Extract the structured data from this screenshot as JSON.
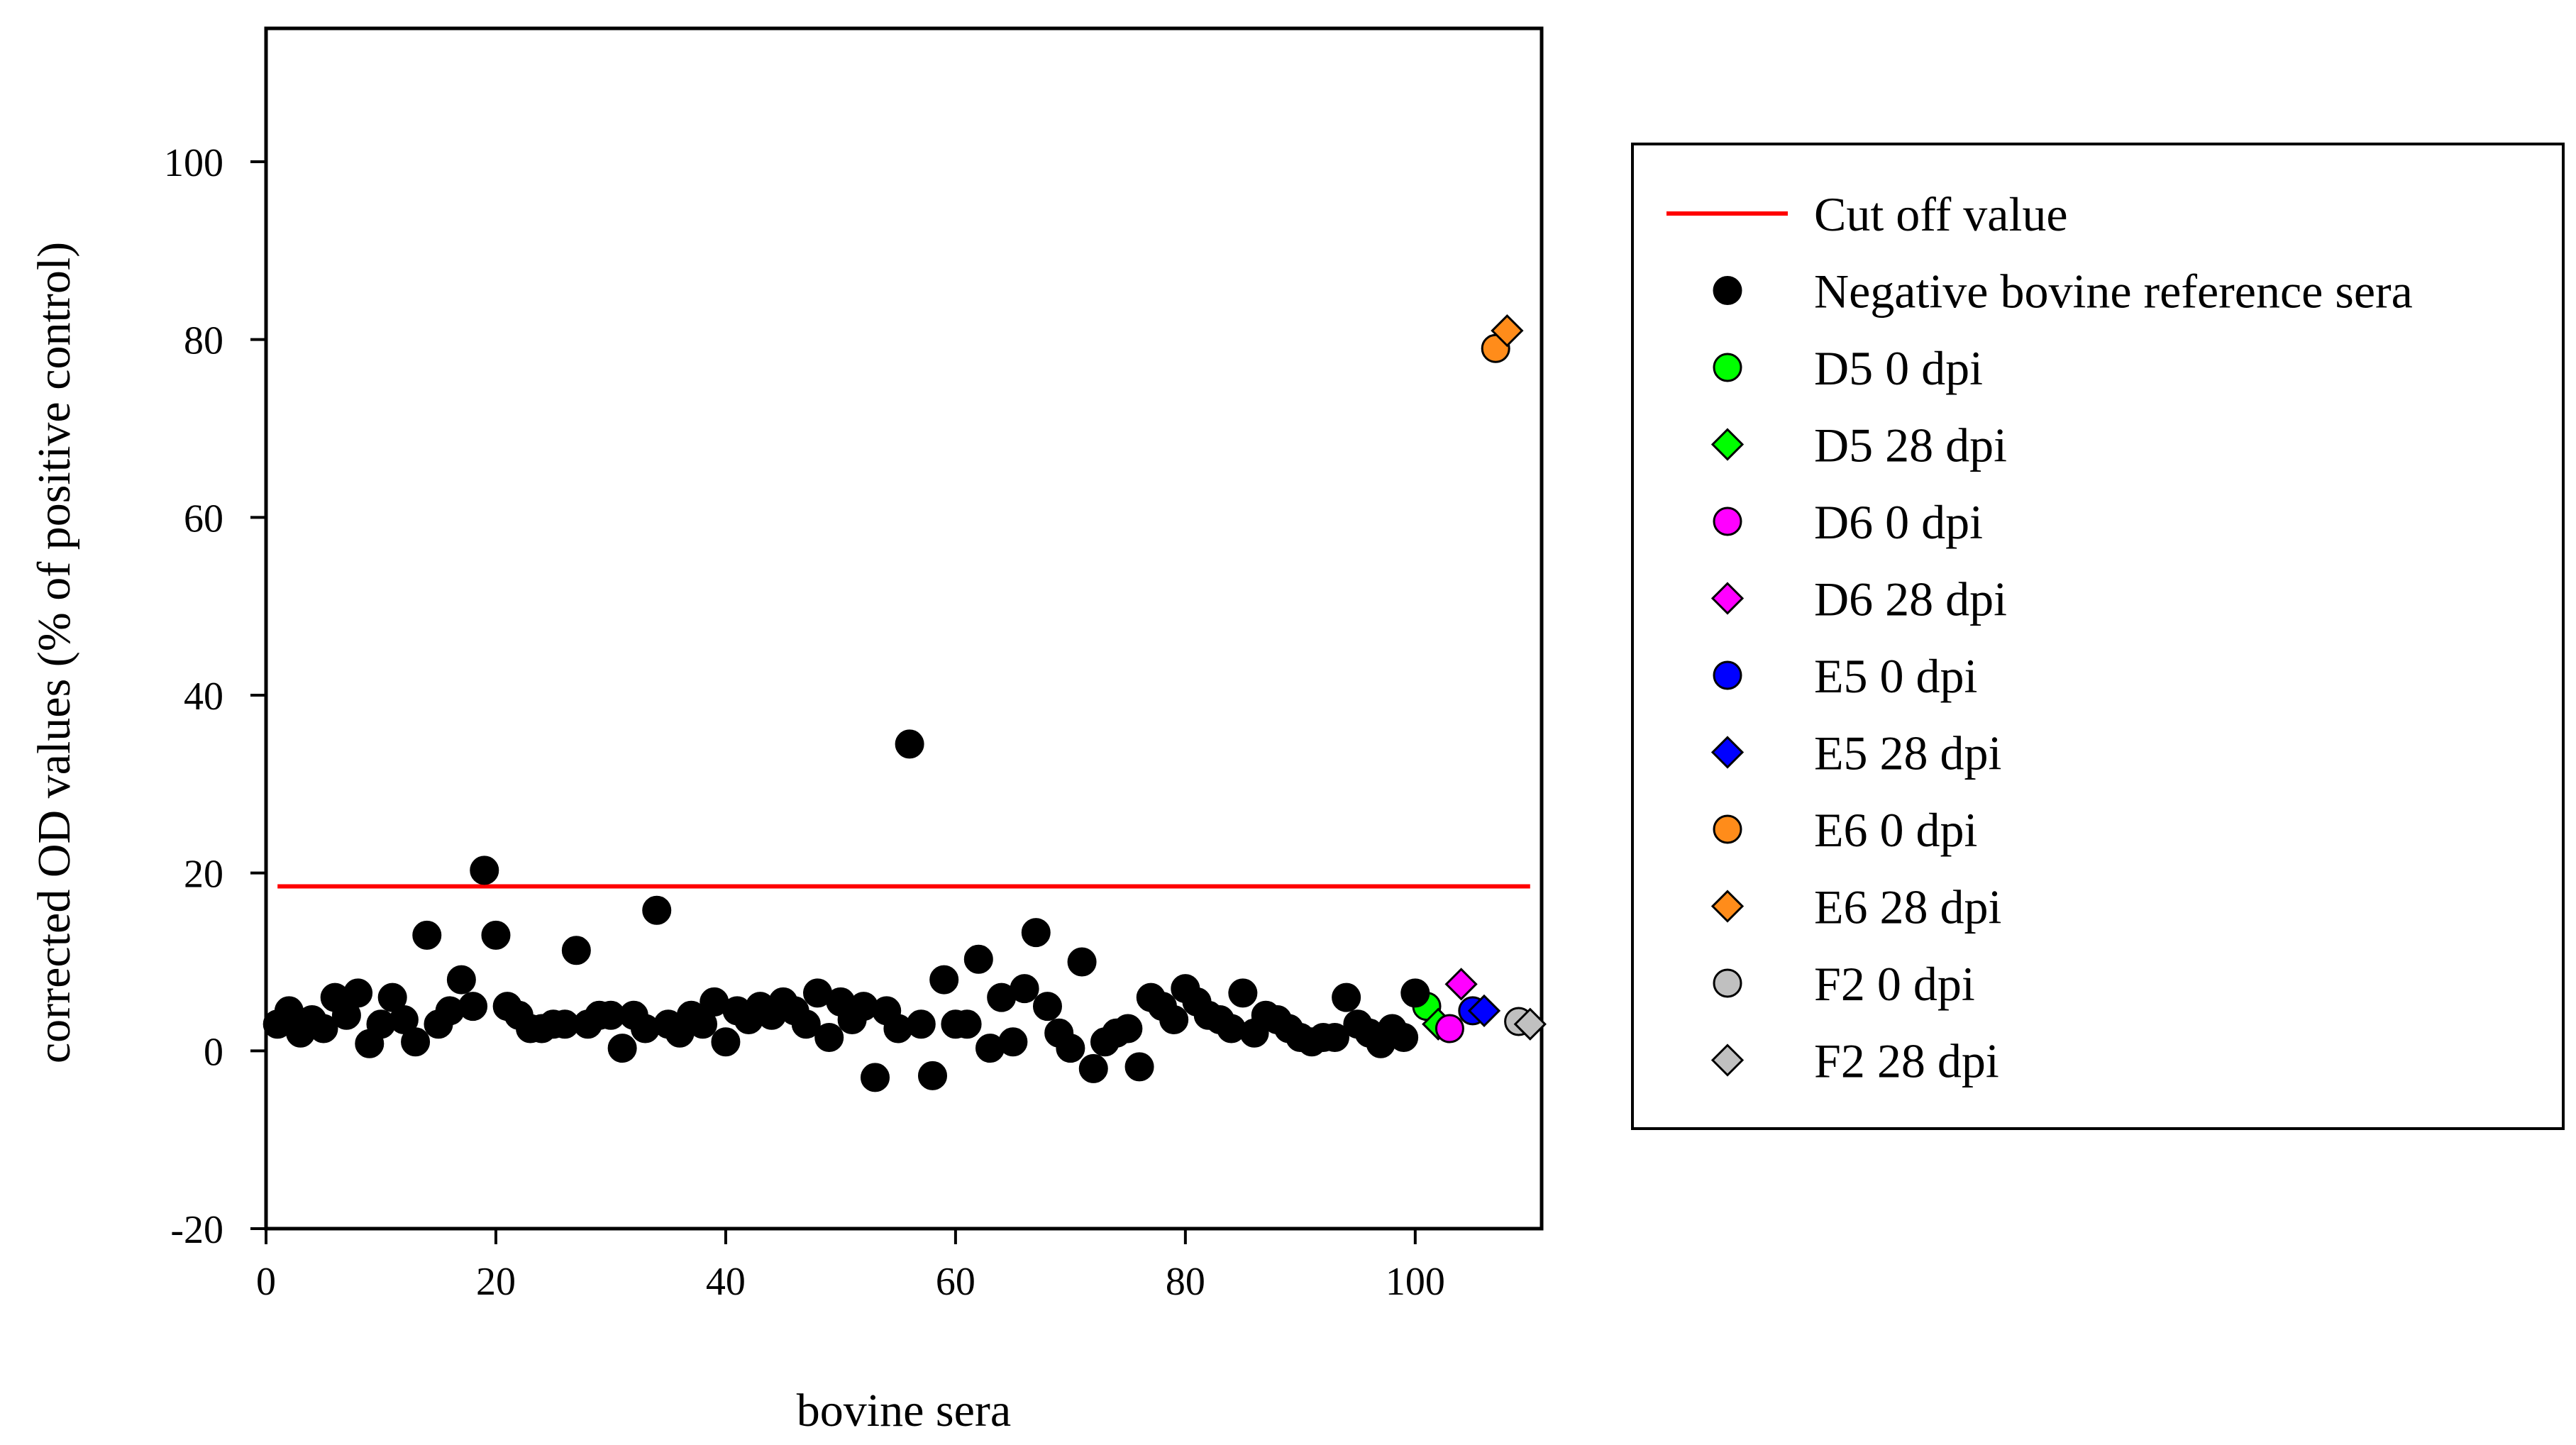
{
  "chart_data": {
    "type": "scatter",
    "xlabel": "bovine sera",
    "ylabel": "corrected OD values (% of positive control)",
    "xlim": [
      0,
      111
    ],
    "ylim": [
      -20,
      115
    ],
    "x_ticks": [
      0,
      20,
      40,
      60,
      80,
      100
    ],
    "y_ticks": [
      -20,
      0,
      20,
      40,
      60,
      80,
      100
    ],
    "x_tick_labels": [
      "0",
      "20",
      "40",
      "60",
      "80",
      "100"
    ],
    "y_tick_labels": [
      "-20",
      "0",
      "20",
      "40",
      "60",
      "80",
      "100"
    ],
    "grid": false,
    "legend_position": "right",
    "cutoff": {
      "name": "Cut off value",
      "y": 18.5,
      "x_range": [
        1,
        110
      ],
      "color": "#ff0000"
    },
    "series": [
      {
        "name": "Negative bovine reference sera",
        "marker": "circle",
        "color": "#000000",
        "points": [
          [
            1,
            3
          ],
          [
            2,
            4.5
          ],
          [
            3,
            2
          ],
          [
            4,
            3.5
          ],
          [
            5,
            2.5
          ],
          [
            6,
            6
          ],
          [
            7,
            4
          ],
          [
            8,
            6.5
          ],
          [
            9,
            0.8
          ],
          [
            10,
            3
          ],
          [
            11,
            6
          ],
          [
            12,
            3.5
          ],
          [
            13,
            1
          ],
          [
            14,
            13
          ],
          [
            15,
            3
          ],
          [
            16,
            4.5
          ],
          [
            17,
            8
          ],
          [
            18,
            5
          ],
          [
            19,
            20.3
          ],
          [
            20,
            13
          ],
          [
            21,
            5
          ],
          [
            22,
            4
          ],
          [
            23,
            2.5
          ],
          [
            24,
            2.5
          ],
          [
            25,
            3
          ],
          [
            26,
            3
          ],
          [
            27,
            11.3
          ],
          [
            28,
            3
          ],
          [
            29,
            4
          ],
          [
            30,
            4
          ],
          [
            31,
            0.3
          ],
          [
            32,
            4
          ],
          [
            33,
            2.5
          ],
          [
            34,
            15.8
          ],
          [
            35,
            3
          ],
          [
            36,
            2
          ],
          [
            37,
            4
          ],
          [
            38,
            3
          ],
          [
            39,
            5.5
          ],
          [
            40,
            1
          ],
          [
            41,
            4.5
          ],
          [
            42,
            3.5
          ],
          [
            43,
            5
          ],
          [
            44,
            4
          ],
          [
            45,
            5.5
          ],
          [
            46,
            4.5
          ],
          [
            47,
            3
          ],
          [
            48,
            6.5
          ],
          [
            49,
            1.5
          ],
          [
            50,
            5.5
          ],
          [
            51,
            3.5
          ],
          [
            52,
            5
          ],
          [
            53,
            -3
          ],
          [
            54,
            4.5
          ],
          [
            55,
            2.5
          ],
          [
            56,
            34.5
          ],
          [
            57,
            3
          ],
          [
            58,
            -2.8
          ],
          [
            59,
            8
          ],
          [
            60,
            3
          ],
          [
            61,
            3
          ],
          [
            62,
            10.3
          ],
          [
            63,
            0.3
          ],
          [
            64,
            6
          ],
          [
            65,
            1
          ],
          [
            66,
            7
          ],
          [
            67,
            13.3
          ],
          [
            68,
            5
          ],
          [
            69,
            2
          ],
          [
            70,
            0.3
          ],
          [
            71,
            10
          ],
          [
            72,
            -2
          ],
          [
            73,
            1
          ],
          [
            74,
            2
          ],
          [
            75,
            2.5
          ],
          [
            76,
            -1.8
          ],
          [
            77,
            6
          ],
          [
            78,
            5
          ],
          [
            79,
            3.5
          ],
          [
            80,
            7
          ],
          [
            81,
            5.5
          ],
          [
            82,
            4
          ],
          [
            83,
            3.5
          ],
          [
            84,
            2.5
          ],
          [
            85,
            6.5
          ],
          [
            86,
            2
          ],
          [
            87,
            4
          ],
          [
            88,
            3.5
          ],
          [
            89,
            2.5
          ],
          [
            90,
            1.5
          ],
          [
            91,
            1
          ],
          [
            92,
            1.5
          ],
          [
            93,
            1.5
          ],
          [
            94,
            6
          ],
          [
            95,
            3
          ],
          [
            96,
            2
          ],
          [
            97,
            0.8
          ],
          [
            98,
            2.5
          ],
          [
            99,
            1.5
          ]
        ]
      },
      {
        "name": "D5 0 dpi",
        "marker": "circle",
        "color": "#00ff00",
        "points": [
          [
            101,
            5
          ]
        ]
      },
      {
        "name": "D5 28 dpi",
        "marker": "diamond",
        "color": "#00ff00",
        "points": [
          [
            102,
            3
          ]
        ]
      },
      {
        "name": "D6 0 dpi",
        "marker": "circle",
        "color": "#ff00ff",
        "points": [
          [
            103,
            2.5
          ]
        ]
      },
      {
        "name": "D6 28 dpi",
        "marker": "diamond",
        "color": "#ff00ff",
        "points": [
          [
            104,
            7.5
          ]
        ]
      },
      {
        "name": "E5 0 dpi",
        "marker": "circle",
        "color": "#0000ff",
        "points": [
          [
            105,
            4.5
          ]
        ]
      },
      {
        "name": "E5 28 dpi",
        "marker": "diamond",
        "color": "#0000ff",
        "points": [
          [
            106,
            4.5
          ]
        ]
      },
      {
        "name": "E6 0 dpi",
        "marker": "circle",
        "color": "#ff8c1a",
        "points": [
          [
            107,
            79
          ]
        ]
      },
      {
        "name": "E6 28 dpi",
        "marker": "diamond",
        "color": "#ff8c1a",
        "points": [
          [
            108,
            81
          ]
        ]
      },
      {
        "name": "F2 0 dpi",
        "marker": "circle",
        "color": "#c0c0c0",
        "points": [
          [
            109,
            3.3
          ]
        ]
      },
      {
        "name": "F2 28 dpi",
        "marker": "diamond",
        "color": "#c0c0c0",
        "points": [
          [
            110,
            3
          ]
        ]
      }
    ],
    "extra_points": [
      {
        "series": "Negative bovine reference sera",
        "x": 100,
        "y": 6.5,
        "color": "#000000",
        "marker": "circle"
      }
    ]
  }
}
